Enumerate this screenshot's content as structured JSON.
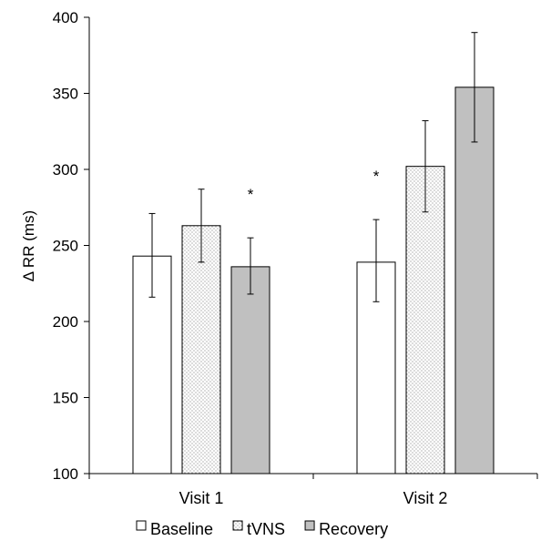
{
  "chart_data": {
    "type": "bar",
    "categories": [
      "Visit 1",
      "Visit 2"
    ],
    "ylabel": "Δ RR (ms)",
    "ylim": [
      100,
      400
    ],
    "yticks": [
      100,
      150,
      200,
      250,
      300,
      350,
      400
    ],
    "grid": false,
    "legend_position": "bottom",
    "series": [
      {
        "name": "Baseline",
        "pattern": "solid-white",
        "color": "#ffffff",
        "values": [
          243,
          239
        ],
        "error_low": [
          216,
          213
        ],
        "error_high": [
          271,
          267
        ]
      },
      {
        "name": "tVNS",
        "pattern": "dotted",
        "color": "#ffffff",
        "values": [
          263,
          302
        ],
        "error_low": [
          239,
          272
        ],
        "error_high": [
          287,
          332
        ]
      },
      {
        "name": "Recovery",
        "pattern": "solid-gray",
        "color": "#c0c0c0",
        "values": [
          236,
          354
        ],
        "error_low": [
          218,
          318
        ],
        "error_high": [
          255,
          390
        ]
      }
    ],
    "annotations": [
      {
        "text": "*",
        "category": "Visit 1",
        "series": "Recovery"
      },
      {
        "text": "*",
        "category": "Visit 2",
        "series": "Baseline"
      }
    ]
  }
}
